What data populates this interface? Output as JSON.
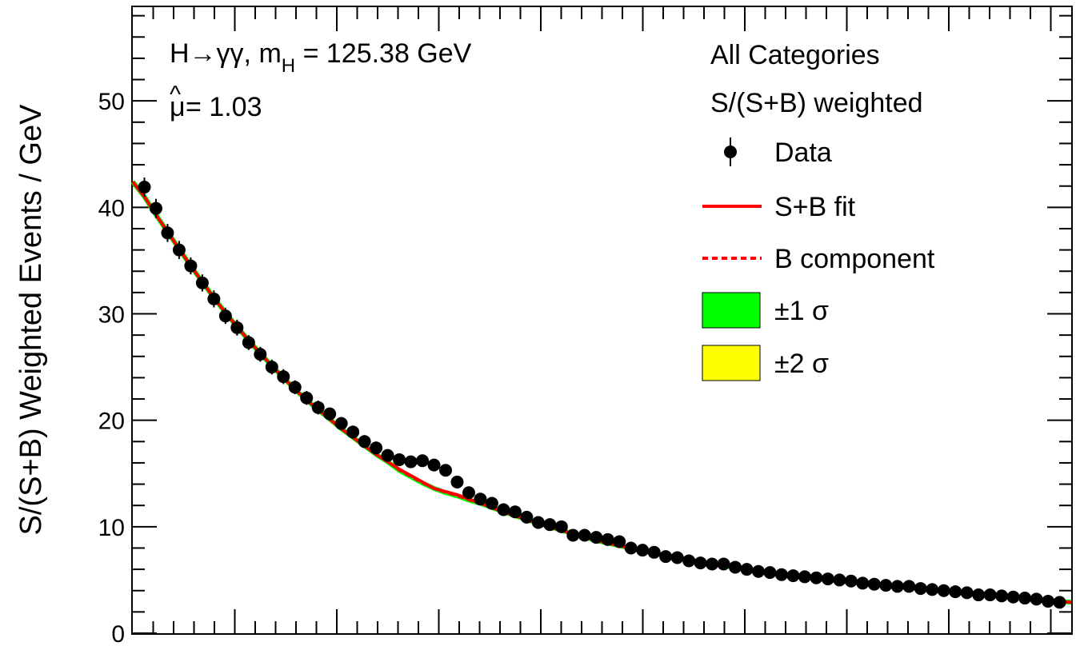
{
  "annotations": {
    "line1_prefix": "H→γγ, m",
    "line1_sub": "H",
    "line1_suffix": " = 125.38 GeV",
    "line2_mu": "μ",
    "line2_hat": "^",
    "line2_suffix": " = 1.03",
    "category": "All Categories",
    "weighting": "S/(S+B) weighted"
  },
  "legend": {
    "data": "Data",
    "sb_fit": "S+B fit",
    "b_component": "B component",
    "one_sigma": "±1 σ",
    "two_sigma": "±2 σ"
  },
  "colors": {
    "data": "#000000",
    "fit": "#ff0000",
    "one_sigma": "#00ff00",
    "two_sigma": "#ffff00"
  },
  "chart_data": {
    "type": "scatter",
    "ylabel": "S/(S+B) Weighted Events / GeV",
    "ylim": [
      0,
      58.8
    ],
    "y_ticks": [
      0,
      10,
      20,
      30,
      40,
      50
    ],
    "x_tick_labels": [],
    "x": [
      1,
      2,
      3,
      4,
      5,
      6,
      7,
      8,
      9,
      10,
      11,
      12,
      13,
      14,
      15,
      16,
      17,
      18,
      19,
      20,
      21,
      22,
      23,
      24,
      25,
      26,
      27,
      28,
      29,
      30,
      31,
      32,
      33,
      34,
      35,
      36,
      37,
      38,
      39,
      40,
      41,
      42,
      43,
      44,
      45,
      46,
      47,
      48,
      49,
      50,
      51,
      52,
      53,
      54,
      55,
      56,
      57,
      58,
      59,
      60,
      61,
      62,
      63,
      64,
      65,
      66,
      67,
      68,
      69,
      70,
      71,
      72,
      73,
      74,
      75,
      76,
      77,
      78,
      79,
      80
    ],
    "series": [
      {
        "name": "Data",
        "values": [
          41.9,
          39.9,
          37.6,
          36.0,
          34.5,
          32.9,
          31.4,
          29.8,
          28.7,
          27.3,
          26.2,
          25.0,
          24.1,
          23.1,
          22.1,
          21.2,
          20.6,
          19.7,
          18.9,
          18.0,
          17.4,
          16.7,
          16.3,
          16.1,
          16.2,
          15.8,
          15.3,
          14.2,
          13.2,
          12.6,
          12.2,
          11.6,
          11.4,
          10.9,
          10.4,
          10.2,
          10.0,
          9.2,
          9.2,
          9.0,
          8.8,
          8.6,
          8.0,
          7.8,
          7.6,
          7.2,
          7.1,
          6.8,
          6.6,
          6.5,
          6.5,
          6.2,
          6.0,
          5.8,
          5.7,
          5.5,
          5.4,
          5.3,
          5.2,
          5.1,
          5.0,
          4.9,
          4.7,
          4.6,
          4.5,
          4.4,
          4.4,
          4.2,
          4.1,
          4.0,
          3.9,
          3.8,
          3.6,
          3.6,
          3.5,
          3.4,
          3.3,
          3.2,
          3.0,
          2.9
        ],
        "errors": [
          0.9,
          0.9,
          0.85,
          0.85,
          0.8,
          0.8,
          0.8,
          0.75,
          0.75,
          0.7,
          0.7,
          0.7,
          0.7,
          0.65,
          0.65,
          0.65,
          0.6,
          0.6,
          0.6,
          0.6,
          0.6,
          0.55,
          0.55,
          0.55,
          0.55,
          0.55,
          0.55,
          0.55,
          0.5,
          0.5,
          0.5,
          0.5,
          0.5,
          0.5,
          0.45,
          0.45,
          0.45,
          0.45,
          0.45,
          0.45,
          0.45,
          0.45,
          0.4,
          0.4,
          0.4,
          0.4,
          0.4,
          0.4,
          0.4,
          0.4,
          0.4,
          0.35,
          0.35,
          0.35,
          0.35,
          0.35,
          0.35,
          0.35,
          0.35,
          0.35,
          0.35,
          0.35,
          0.3,
          0.3,
          0.3,
          0.3,
          0.3,
          0.3,
          0.3,
          0.3,
          0.3,
          0.3,
          0.3,
          0.3,
          0.3,
          0.3,
          0.3,
          0.3,
          0.3,
          0.3
        ]
      },
      {
        "name": "S+B fit",
        "x": [
          0,
          1,
          2,
          3,
          4,
          5,
          6,
          7,
          8,
          9,
          10,
          11,
          12,
          13,
          14,
          15,
          16,
          17,
          18,
          19,
          20,
          21,
          22,
          23,
          24,
          25,
          26,
          27,
          28,
          29,
          30,
          32,
          35,
          40,
          45,
          50,
          55,
          60,
          65,
          70,
          75,
          80,
          81
        ],
        "values": [
          42.4,
          41.0,
          39.3,
          37.7,
          36.1,
          34.5,
          33.0,
          31.5,
          30.1,
          28.8,
          27.5,
          26.3,
          25.1,
          24.0,
          22.9,
          21.9,
          21.0,
          20.1,
          19.2,
          18.4,
          17.6,
          16.8,
          16.1,
          15.4,
          14.8,
          14.2,
          13.6,
          13.3,
          13.0,
          12.6,
          12.2,
          11.4,
          10.3,
          8.7,
          7.5,
          6.5,
          5.7,
          5.0,
          4.5,
          4.0,
          3.5,
          3.0,
          2.9
        ]
      },
      {
        "name": "B component",
        "x": [
          0,
          1,
          2,
          3,
          4,
          5,
          6,
          7,
          8,
          9,
          10,
          11,
          12,
          13,
          14,
          15,
          16,
          17,
          18,
          19,
          20,
          21,
          22,
          23,
          24,
          25,
          26,
          27,
          28,
          29,
          30,
          32,
          35,
          40,
          45,
          50,
          55,
          60,
          65,
          70,
          75,
          80,
          81
        ],
        "values": [
          42.4,
          41.0,
          39.3,
          37.7,
          36.1,
          34.5,
          33.0,
          31.5,
          30.1,
          28.8,
          27.5,
          26.3,
          25.1,
          24.0,
          22.9,
          21.9,
          21.0,
          20.1,
          19.2,
          18.4,
          17.6,
          16.8,
          16.1,
          15.3,
          14.7,
          14.1,
          13.6,
          13.2,
          12.9,
          12.5,
          12.2,
          11.4,
          10.3,
          8.7,
          7.5,
          6.5,
          5.7,
          5.0,
          4.5,
          4.0,
          3.5,
          3.0,
          2.9
        ]
      }
    ],
    "grid": false,
    "legend_position": "top-right"
  }
}
